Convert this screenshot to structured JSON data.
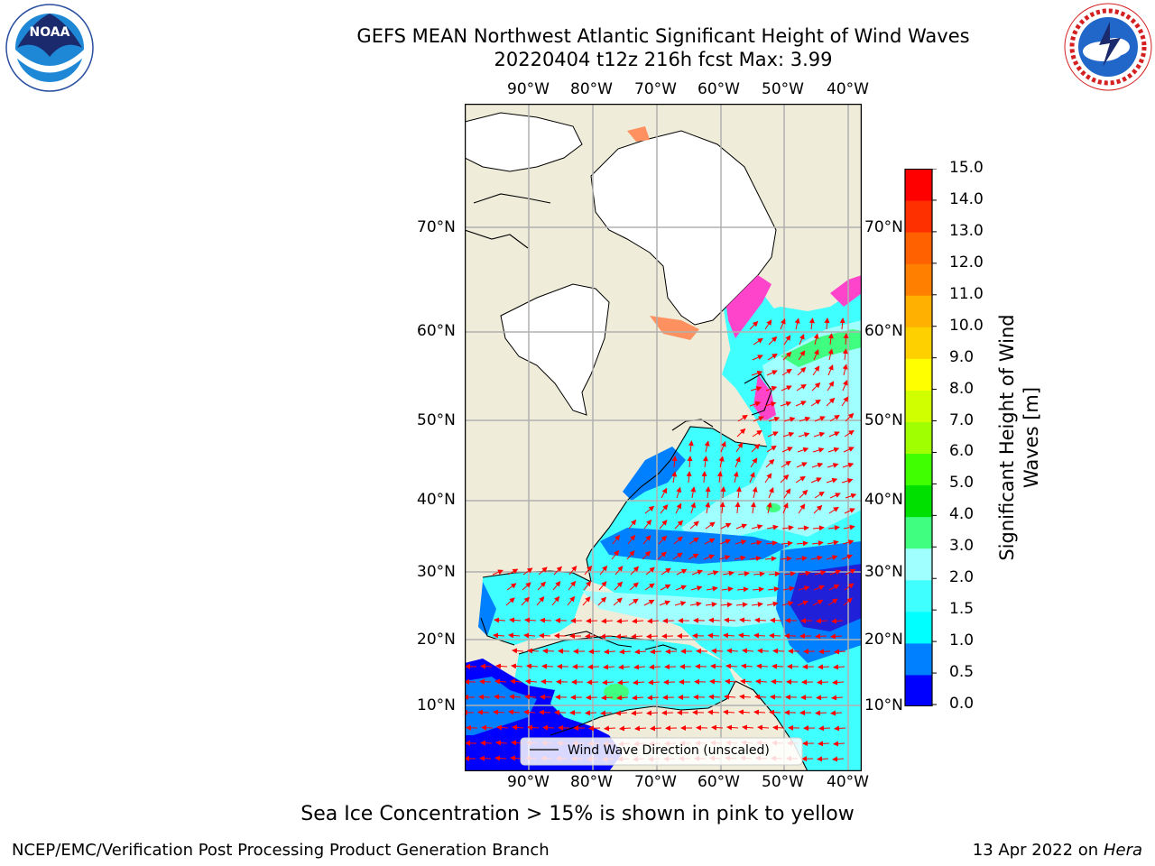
{
  "header": {
    "title_line1": "GEFS MEAN Northwest Atlantic Significant Height of Wind Waves",
    "title_line2": "20220404 t12z 216h fcst   Max: 3.99"
  },
  "logos": {
    "noaa_text": "NOAA",
    "noaa_ring": "NATIONAL OCEANIC AND ATMOSPHERIC ADMINISTRATION · U.S. DEPARTMENT OF COMMERCE",
    "nws_ring": "NATIONAL WEATHER SERVICE"
  },
  "map": {
    "lon_labels": [
      "90°W",
      "80°W",
      "70°W",
      "60°W",
      "50°W",
      "40°W"
    ],
    "lat_labels": [
      "70°N",
      "60°N",
      "50°N",
      "40°N",
      "30°N",
      "20°N",
      "10°N"
    ],
    "legend_label": "Wind Wave Direction (unscaled)",
    "land_color": "#efedd9",
    "ice_color": "#ff44cc"
  },
  "colorbar": {
    "ticks": [
      "15.0",
      "14.0",
      "13.0",
      "12.0",
      "11.0",
      "10.0",
      "9.0",
      "8.0",
      "7.0",
      "6.0",
      "5.0",
      "4.0",
      "3.0",
      "2.0",
      "1.5",
      "1.0",
      "0.5",
      "0.0"
    ],
    "label": "Significant Height of Wind Waves [m]",
    "colors": [
      "#0000ff",
      "#0080ff",
      "#00ffff",
      "#40ffff",
      "#a0ffff",
      "#40ff80",
      "#00e000",
      "#40ff00",
      "#a0ff00",
      "#d0ff00",
      "#ffff00",
      "#ffd000",
      "#ffb000",
      "#ff8000",
      "#ff6000",
      "#ff3000",
      "#ff0000"
    ]
  },
  "footer": {
    "note": "Sea Ice Concentration > 15% is shown in pink to yellow",
    "left": "NCEP/EMC/Verification Post Processing Product Generation Branch",
    "date": "13 Apr 2022 on",
    "host": "Hera"
  }
}
